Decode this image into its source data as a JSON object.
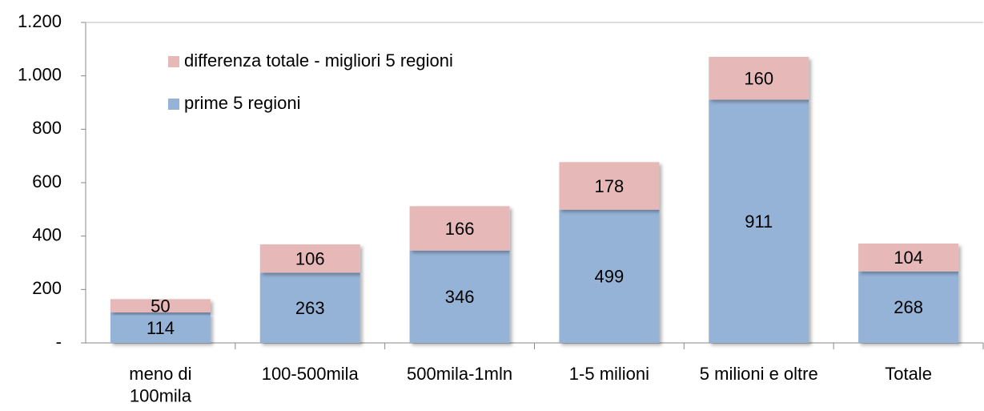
{
  "chart_data": {
    "type": "stacked_bar",
    "categories": [
      "meno di\n100mila",
      "100-500mila",
      "500mila-1mln",
      "1-5 milioni",
      "5 milioni e oltre",
      "Totale"
    ],
    "series": [
      {
        "name": "prime 5 regioni",
        "color": "#95b3d7",
        "values": [
          114,
          263,
          346,
          499,
          911,
          268
        ]
      },
      {
        "name": "differenza totale - migliori 5 regioni",
        "color": "#e6b9b8",
        "values": [
          50,
          106,
          166,
          178,
          160,
          104
        ]
      }
    ],
    "ylim": [
      0,
      1200
    ],
    "yticks": [
      {
        "value": 0,
        "label": "-"
      },
      200,
      400,
      600,
      800,
      {
        "value": 1000,
        "label": "1.000"
      },
      {
        "value": 1200,
        "label": "1.200"
      }
    ],
    "legend": "upper left"
  }
}
